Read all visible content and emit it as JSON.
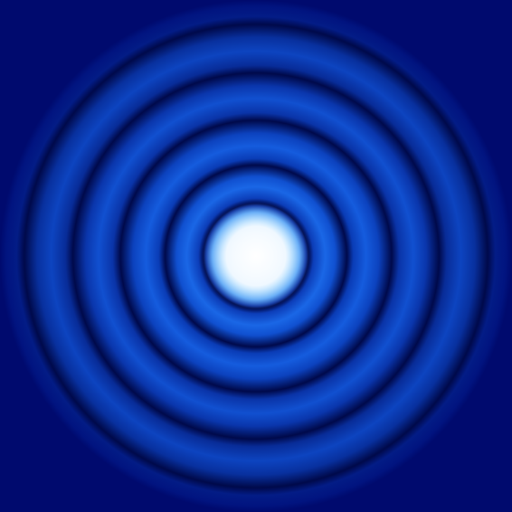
{
  "image": {
    "subject": "diffraction-ring-pattern",
    "ring_count": 6,
    "colors": {
      "background": "#000a6e",
      "ring_dark": "#00094a",
      "ring_blue": "#0a40c8",
      "ring_mid": "#1560e0",
      "core_glow": "#3aa0ff",
      "core_bright": "#f4faff"
    }
  }
}
